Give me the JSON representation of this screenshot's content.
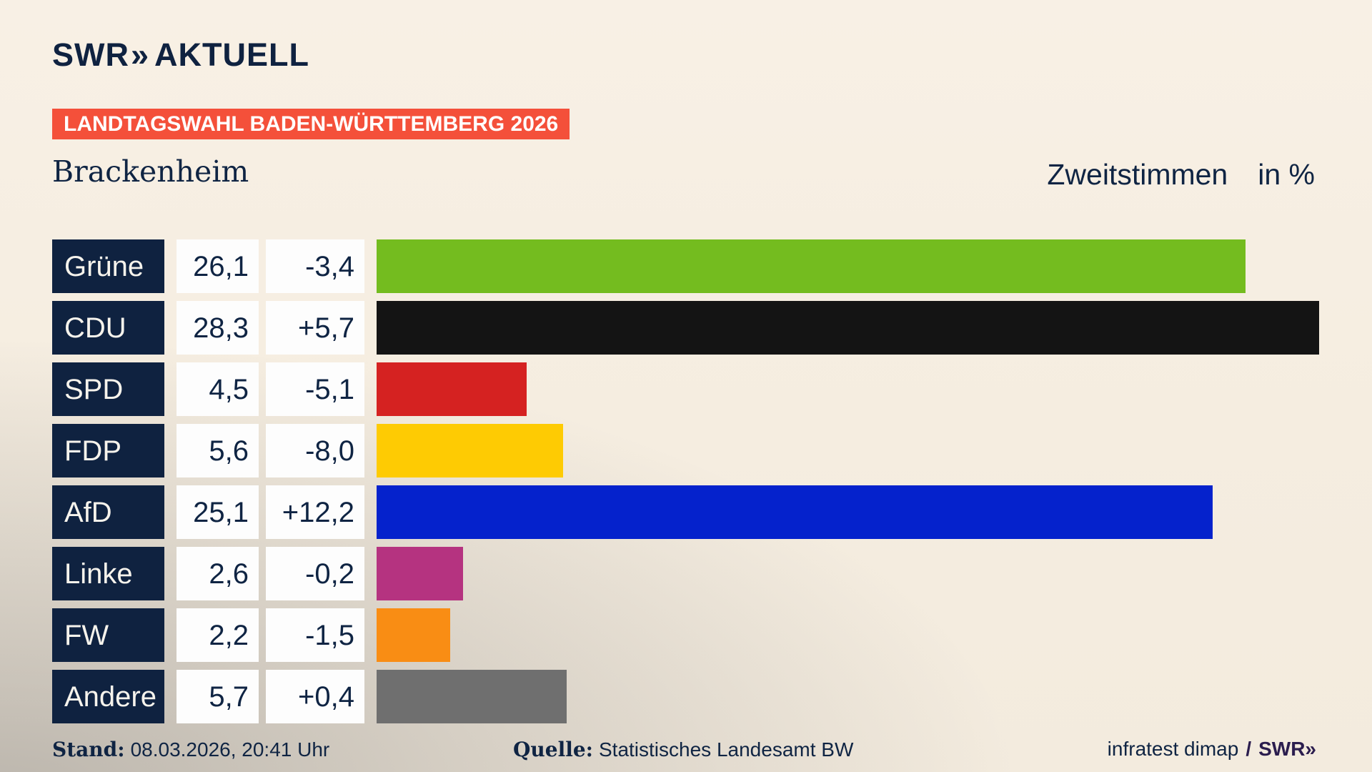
{
  "header": {
    "logo": {
      "brand": "SWR",
      "chevron": "»",
      "product": "AKTUELL"
    },
    "banner": "LANDTAGSWAHL BADEN-WÜRTTEMBERG 2026",
    "region": "Brackenheim",
    "measure": "Zweitstimmen",
    "unit": "in %"
  },
  "chart_data": {
    "type": "bar",
    "orientation": "horizontal",
    "title": "Zweitstimmen in %",
    "categories": [
      "Grüne",
      "CDU",
      "SPD",
      "FDP",
      "AfD",
      "Linke",
      "FW",
      "Andere"
    ],
    "values": [
      26.1,
      28.3,
      4.5,
      5.6,
      25.1,
      2.6,
      2.2,
      5.7
    ],
    "changes": [
      -3.4,
      5.7,
      -5.1,
      -8.0,
      12.2,
      -0.2,
      -1.5,
      0.4
    ],
    "value_labels": [
      "26,1",
      "28,3",
      "4,5",
      "5,6",
      "25,1",
      "2,6",
      "2,2",
      "5,7"
    ],
    "change_labels": [
      "-3,4",
      "+5,7",
      "-5,1",
      "-8,0",
      "+12,2",
      "-0,2",
      "-1,5",
      "+0,4"
    ],
    "bar_colors": [
      "#74bc1f",
      "#141414",
      "#d52221",
      "#fecb03",
      "#0522cc",
      "#b53380",
      "#f98d14",
      "#6f6f6f"
    ],
    "xlim": [
      0,
      29.5
    ],
    "legend": false,
    "grid": false
  },
  "footer": {
    "stand_label": "Stand:",
    "stand_value": "08.03.2026, 20:41 Uhr",
    "quelle_label": "Quelle:",
    "quelle_value": "Statistisches Landesamt BW",
    "attribution": "infratest dimap",
    "attribution_separator": "/",
    "attribution_brand": "SWR»"
  },
  "colors": {
    "background_beige": "#f5ede0",
    "background_gray": "#c9c6c2",
    "navy": "#0f2240",
    "banner_red": "#f4503a",
    "box_white": "#fdfdfd",
    "attribution_purple": "#2b1d4e"
  }
}
